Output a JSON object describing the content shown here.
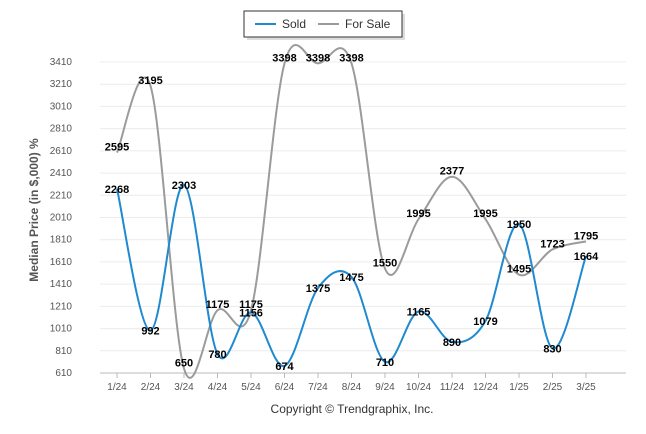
{
  "chart_data": {
    "type": "line",
    "categories": [
      "1/24",
      "2/24",
      "3/24",
      "4/24",
      "5/24",
      "6/24",
      "7/24",
      "8/24",
      "9/24",
      "10/24",
      "11/24",
      "12/24",
      "1/25",
      "2/25",
      "3/25"
    ],
    "series": [
      {
        "name": "Sold",
        "color": "#1f8ad0",
        "values": [
          2268,
          992,
          2303,
          780,
          1156,
          674,
          1375,
          1475,
          710,
          1165,
          890,
          1079,
          1950,
          830,
          1664
        ],
        "labels": [
          "2268",
          "992",
          "2303",
          "780",
          "1156",
          "674",
          "1375",
          "1475",
          "710",
          "1165",
          "890",
          "1079",
          "1950",
          "830",
          "1664"
        ]
      },
      {
        "name": "For Sale",
        "color": "#9b9b9b",
        "values": [
          2595,
          3195,
          650,
          1175,
          1175,
          3398,
          3398,
          3398,
          1550,
          1995,
          2377,
          1995,
          1495,
          1723,
          1795
        ],
        "labels": [
          "2595",
          "3195",
          "650",
          "1175",
          "1175",
          "3398",
          "3398",
          "3398",
          "1550",
          "1995",
          "2377",
          "1995",
          "1495",
          "1723",
          "1795"
        ]
      }
    ],
    "ylabel": "Median Price (in $,000) %",
    "yticks": [
      610,
      810,
      1010,
      1210,
      1410,
      1610,
      1810,
      2010,
      2210,
      2410,
      2610,
      2810,
      3010,
      3210,
      3410
    ],
    "ylim": [
      610,
      3410
    ],
    "grid": true,
    "legend_position": "top-center"
  },
  "legend": {
    "sold_label": "Sold",
    "for_sale_label": "For Sale"
  },
  "footer": {
    "copyright": "Copyright © Trendgraphix, Inc."
  }
}
